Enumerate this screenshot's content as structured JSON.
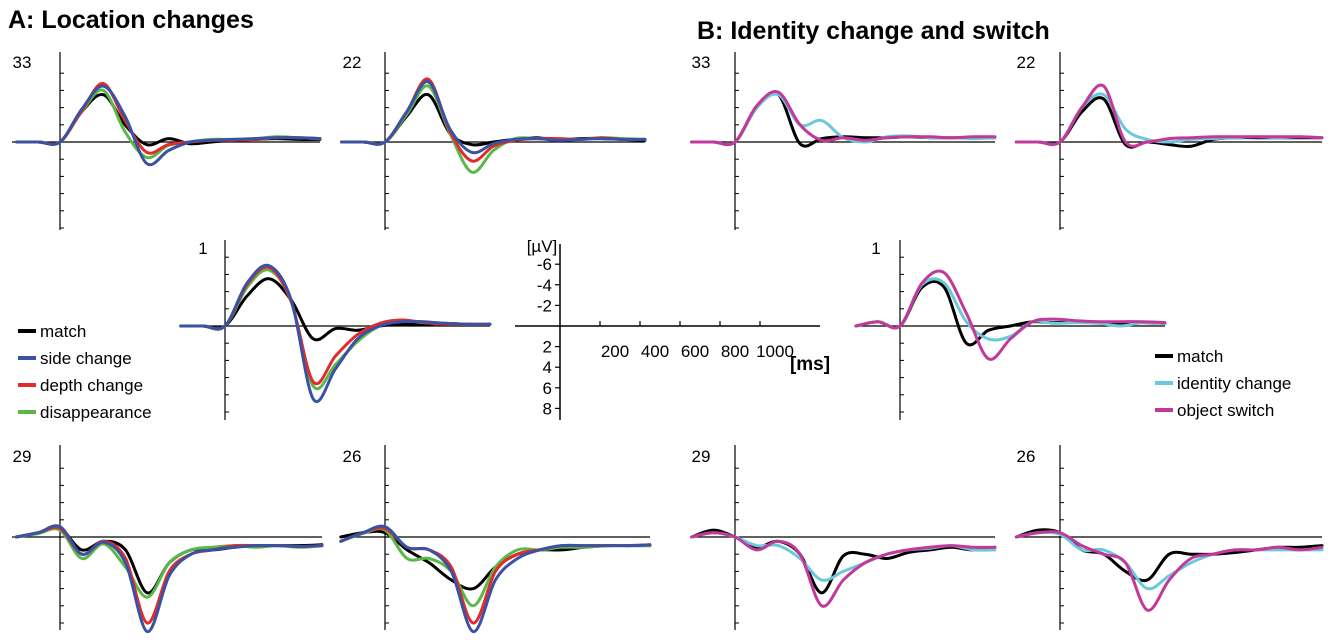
{
  "panels": {
    "a_title": "A: Location changes",
    "b_title": "B: Identity change and switch"
  },
  "scale": {
    "y_unit": "[µV]",
    "y_ticks": [
      "-6",
      "-4",
      "-2",
      "2",
      "4",
      "6",
      "8"
    ],
    "x_ticks": [
      "200",
      "400",
      "600",
      "800",
      "1000"
    ],
    "x_unit": "[ms]"
  },
  "legend_a": [
    "match",
    "side change",
    "depth change",
    "disappearance"
  ],
  "legend_b": [
    "match",
    "identity change",
    "object switch"
  ],
  "colors": {
    "match": "#000000",
    "side change": "#3a52a4",
    "depth change": "#e32b2b",
    "disappearance": "#59b848",
    "identity change": "#6cc9d9",
    "object switch": "#c2399a"
  },
  "chart_data": [
    {
      "type": "line",
      "panel": "A",
      "channel": "33",
      "x": [
        -200,
        -100,
        0,
        100,
        200,
        300,
        400,
        500,
        600,
        700,
        800,
        900,
        1000,
        1100,
        1200
      ],
      "series": [
        {
          "name": "match",
          "values": [
            0,
            0,
            0,
            -3.5,
            -5.5,
            -2,
            0.3,
            -0.4,
            0.2,
            0,
            -0.2,
            -0.3,
            -0.4,
            -0.3,
            -0.3
          ]
        },
        {
          "name": "side change",
          "values": [
            0,
            0,
            0,
            -3.8,
            -6.5,
            -3,
            2.5,
            1,
            0,
            -0.2,
            -0.3,
            -0.4,
            -0.5,
            -0.5,
            -0.4
          ]
        },
        {
          "name": "depth change",
          "values": [
            0,
            0,
            0,
            -3.6,
            -6.8,
            -2.5,
            1.2,
            0.3,
            0,
            -0.2,
            -0.2,
            -0.3,
            -0.5,
            -0.5,
            -0.4
          ]
        },
        {
          "name": "disappearance",
          "values": [
            0,
            0,
            0,
            -3.5,
            -6,
            -1.2,
            1.8,
            0.4,
            0,
            -0.3,
            -0.3,
            -0.4,
            -0.6,
            -0.5,
            -0.4
          ]
        }
      ]
    },
    {
      "type": "line",
      "panel": "A",
      "channel": "22",
      "x": [
        -200,
        -100,
        0,
        100,
        200,
        300,
        400,
        500,
        600,
        700,
        800,
        900,
        1000,
        1100,
        1200
      ],
      "series": [
        {
          "name": "match",
          "values": [
            0,
            0,
            0,
            -3,
            -5.5,
            -1,
            0.3,
            0,
            -0.3,
            -0.5,
            -0.2,
            -0.4,
            -0.4,
            -0.3,
            -0.2
          ]
        },
        {
          "name": "side change",
          "values": [
            0,
            0,
            0,
            -3.5,
            -7,
            -1.5,
            1.2,
            0.2,
            -0.3,
            -0.4,
            -0.2,
            -0.3,
            -0.4,
            -0.3,
            -0.3
          ]
        },
        {
          "name": "depth change",
          "values": [
            0,
            0,
            0,
            -3.5,
            -7.3,
            -1.2,
            2.2,
            0.5,
            -0.2,
            -0.4,
            -0.4,
            -0.3,
            -0.5,
            -0.3,
            -0.3
          ]
        },
        {
          "name": "disappearance",
          "values": [
            0,
            0,
            0,
            -3.2,
            -6.5,
            -1,
            3.5,
            1,
            -0.4,
            -0.4,
            -0.3,
            -0.3,
            -0.5,
            -0.4,
            -0.3
          ]
        }
      ]
    },
    {
      "type": "line",
      "panel": "A",
      "channel": "1",
      "x": [
        -200,
        -100,
        0,
        100,
        200,
        300,
        400,
        500,
        600,
        700,
        800,
        900,
        1000,
        1100,
        1200
      ],
      "series": [
        {
          "name": "match",
          "values": [
            0,
            0,
            0,
            -3.5,
            -5.5,
            -3,
            1.5,
            0.3,
            0.5,
            0,
            -0.2,
            -0.2,
            -0.3,
            -0.2,
            -0.2
          ]
        },
        {
          "name": "side change",
          "values": [
            0,
            0,
            0,
            -5,
            -7,
            -3,
            8.5,
            5,
            1.5,
            0,
            -0.5,
            -0.5,
            -0.3,
            -0.2,
            -0.2
          ]
        },
        {
          "name": "depth change",
          "values": [
            0,
            0,
            0,
            -4.8,
            -6.8,
            -2.8,
            6.5,
            3.5,
            1,
            -0.3,
            -0.7,
            -0.4,
            -0.2,
            -0.2,
            -0.2
          ]
        },
        {
          "name": "disappearance",
          "values": [
            0,
            0,
            0,
            -4.5,
            -6.5,
            -2.8,
            7,
            4.5,
            1.8,
            0,
            -0.6,
            -0.4,
            -0.3,
            -0.2,
            -0.2
          ]
        }
      ]
    },
    {
      "type": "line",
      "panel": "A",
      "channel": "29",
      "x": [
        -200,
        -100,
        0,
        100,
        200,
        300,
        400,
        500,
        600,
        700,
        800,
        900,
        1000,
        1100,
        1200
      ],
      "series": [
        {
          "name": "match",
          "values": [
            0,
            -0.5,
            -1,
            1.5,
            0.5,
            1.5,
            6.5,
            3,
            1.5,
            1.5,
            1.2,
            1,
            1,
            1,
            0.9
          ]
        },
        {
          "name": "side change",
          "values": [
            0,
            -0.5,
            -1.2,
            2,
            0.6,
            3,
            11,
            4.5,
            2,
            1.5,
            1.2,
            1,
            1,
            1.1,
            1
          ]
        },
        {
          "name": "depth change",
          "values": [
            0,
            -0.5,
            -1,
            2,
            0.5,
            2.5,
            10,
            4,
            2,
            1.5,
            1,
            1,
            1,
            1.1,
            1
          ]
        },
        {
          "name": "disappearance",
          "values": [
            0,
            -0.4,
            -0.8,
            2.5,
            0.8,
            3.5,
            7,
            3,
            1.5,
            1.2,
            1,
            1.2,
            1,
            1.2,
            1
          ]
        }
      ]
    },
    {
      "type": "line",
      "panel": "A",
      "channel": "26",
      "x": [
        -200,
        -100,
        0,
        100,
        200,
        300,
        400,
        500,
        600,
        700,
        800,
        900,
        1000,
        1100,
        1200
      ],
      "series": [
        {
          "name": "match",
          "values": [
            0,
            -0.5,
            -0.5,
            1.5,
            3,
            5,
            6,
            3.5,
            2,
            1.5,
            1.5,
            1.2,
            1,
            1,
            1
          ]
        },
        {
          "name": "side change",
          "values": [
            0.5,
            -0.5,
            -1.2,
            1.2,
            1.5,
            4,
            11,
            5,
            2.5,
            1.5,
            1,
            1,
            1,
            1,
            0.9
          ]
        },
        {
          "name": "depth change",
          "values": [
            0.5,
            -0.5,
            -1,
            1.2,
            1.5,
            3.5,
            10,
            4,
            2,
            1.5,
            1,
            1,
            1,
            1,
            0.9
          ]
        },
        {
          "name": "disappearance",
          "values": [
            0.5,
            -0.4,
            -0.8,
            2.5,
            2.5,
            4,
            8,
            3.5,
            1.5,
            1.5,
            1.2,
            1.2,
            1,
            1,
            1
          ]
        }
      ]
    },
    {
      "type": "line",
      "panel": "B",
      "channel": "33",
      "x": [
        -200,
        -100,
        0,
        100,
        200,
        300,
        400,
        500,
        600,
        700,
        800,
        900,
        1000,
        1100,
        1200
      ],
      "series": [
        {
          "name": "match",
          "values": [
            0,
            0,
            0,
            -4,
            -5.5,
            0.2,
            -0.4,
            -0.6,
            -0.5,
            -0.5,
            -0.6,
            -0.5,
            -0.5,
            -0.5,
            -0.5
          ]
        },
        {
          "name": "identity change",
          "values": [
            0,
            0,
            0,
            -4,
            -5.5,
            -2,
            -2.5,
            -0.5,
            0,
            -0.6,
            -0.7,
            -0.5,
            -0.5,
            -0.4,
            -0.5
          ]
        },
        {
          "name": "object switch",
          "values": [
            0,
            0,
            0,
            -4.2,
            -5.8,
            -2,
            -0.2,
            -0.5,
            -0.2,
            -0.5,
            -0.6,
            -0.6,
            -0.5,
            -0.6,
            -0.6
          ]
        }
      ]
    },
    {
      "type": "line",
      "panel": "B",
      "channel": "22",
      "x": [
        -200,
        -100,
        0,
        100,
        200,
        300,
        400,
        500,
        600,
        700,
        800,
        900,
        1000,
        1100,
        1200
      ],
      "series": [
        {
          "name": "match",
          "values": [
            0,
            0,
            0,
            -3.5,
            -5,
            0.3,
            0,
            0.3,
            0.5,
            -0.3,
            -0.5,
            -0.5,
            -0.5,
            -0.5,
            -0.5
          ]
        },
        {
          "name": "identity change",
          "values": [
            0,
            0,
            0,
            -4,
            -5.5,
            -1.5,
            -0.3,
            0,
            -0.3,
            -0.4,
            -0.5,
            -0.6,
            -0.5,
            -0.6,
            -0.5
          ]
        },
        {
          "name": "object switch",
          "values": [
            0,
            0,
            0,
            -4,
            -6.5,
            0,
            0,
            -0.4,
            -0.5,
            -0.6,
            -0.6,
            -0.6,
            -0.6,
            -0.6,
            -0.5
          ]
        }
      ]
    },
    {
      "type": "line",
      "panel": "B",
      "channel": "1",
      "x": [
        -200,
        -100,
        0,
        100,
        200,
        300,
        400,
        500,
        600,
        700,
        800,
        900,
        1000,
        1100,
        1200
      ],
      "series": [
        {
          "name": "match",
          "values": [
            0,
            -0.5,
            0,
            -4.5,
            -4.5,
            2,
            0.5,
            0,
            -0.5,
            -0.4,
            -0.5,
            -0.4,
            -0.3,
            -0.4,
            -0.3
          ]
        },
        {
          "name": "identity change",
          "values": [
            0,
            -0.5,
            0,
            -4.8,
            -5,
            -0.5,
            1.5,
            1.2,
            -0.5,
            -0.3,
            -0.4,
            -0.3,
            0,
            -0.4,
            -0.3
          ]
        },
        {
          "name": "object switch",
          "values": [
            0,
            -0.5,
            0,
            -5,
            -6.2,
            -1.5,
            3.8,
            1.5,
            -0.5,
            -0.8,
            -0.6,
            -0.5,
            -0.5,
            -0.5,
            -0.4
          ]
        }
      ]
    },
    {
      "type": "line",
      "panel": "B",
      "channel": "29",
      "x": [
        -200,
        -100,
        0,
        100,
        200,
        300,
        400,
        500,
        600,
        700,
        800,
        900,
        1000,
        1100,
        1200
      ],
      "series": [
        {
          "name": "match",
          "values": [
            0,
            -0.8,
            0,
            1.2,
            0.5,
            2,
            6.5,
            2.2,
            2,
            2.5,
            1.8,
            1.5,
            1.2,
            1.5,
            1.2
          ]
        },
        {
          "name": "identity change",
          "values": [
            0,
            -0.5,
            0,
            1,
            1,
            2.5,
            5,
            4,
            3,
            2,
            1.5,
            1.3,
            1,
            1.5,
            1.5
          ]
        },
        {
          "name": "object switch",
          "values": [
            0,
            -0.5,
            0,
            1.5,
            0.5,
            2,
            8,
            5,
            3,
            2,
            1.5,
            1.2,
            1,
            1.2,
            1.2
          ]
        }
      ]
    },
    {
      "type": "line",
      "panel": "B",
      "channel": "26",
      "x": [
        -200,
        -100,
        0,
        100,
        200,
        300,
        400,
        500,
        600,
        700,
        800,
        900,
        1000,
        1100,
        1200
      ],
      "series": [
        {
          "name": "match",
          "values": [
            0,
            -0.8,
            -0.5,
            1.5,
            2,
            4,
            5,
            2,
            2,
            2,
            1.8,
            1.5,
            1.2,
            1.2,
            1
          ]
        },
        {
          "name": "identity change",
          "values": [
            0,
            -0.5,
            -0.3,
            1.5,
            1.5,
            3,
            6,
            4.5,
            3,
            2,
            1.5,
            1.5,
            1.5,
            1.5,
            1.5
          ]
        },
        {
          "name": "object switch",
          "values": [
            0,
            -0.5,
            -0.5,
            1,
            2,
            3,
            8.5,
            5,
            2.5,
            2,
            1.5,
            1.5,
            1.2,
            1.5,
            1.2
          ]
        }
      ]
    }
  ]
}
